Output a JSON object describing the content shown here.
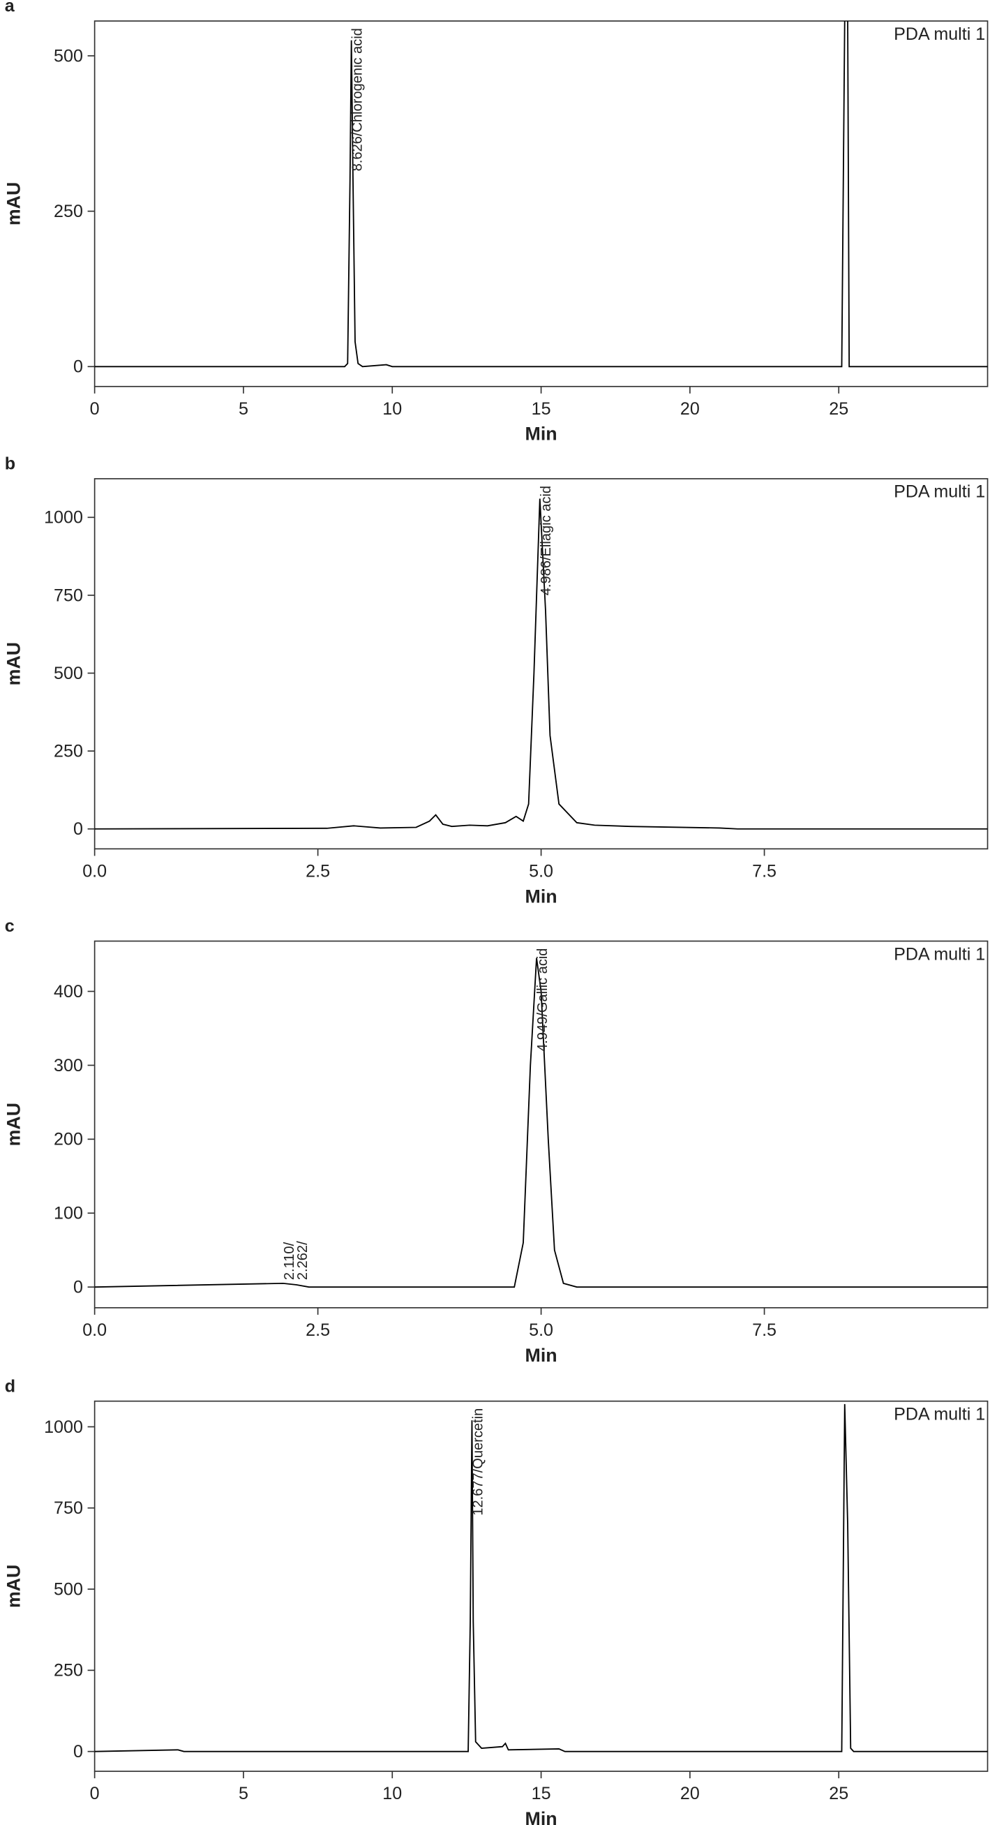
{
  "chart_data": [
    {
      "type": "line",
      "panel": "a",
      "xlabel": "Min",
      "ylabel": "mAU",
      "xlim": [
        0,
        30
      ],
      "ylim": [
        -32,
        556
      ],
      "xticks": [
        0,
        5,
        10,
        15,
        20,
        25
      ],
      "yticks": [
        0,
        250,
        500
      ],
      "x": [
        0,
        2,
        8.4,
        8.5,
        8.58,
        8.626,
        8.68,
        8.75,
        8.85,
        9,
        9.8,
        10,
        25.1,
        25.2,
        25.3,
        25.35,
        30
      ],
      "series": [
        {
          "name": "PDA multi 1",
          "color": "#000000",
          "values": [
            0,
            0,
            0,
            5,
            300,
            525,
            300,
            40,
            5,
            0,
            3,
            0,
            0,
            560,
            560,
            0,
            0
          ]
        }
      ],
      "annotations": [
        {
          "x": 8.626,
          "text": "8.626/Chlorogenic acid"
        }
      ]
    },
    {
      "type": "line",
      "panel": "b",
      "xlabel": "Min",
      "ylabel": "mAU",
      "xlim": [
        0,
        10
      ],
      "ylim": [
        -64,
        1124
      ],
      "xticks": [
        {
          "value": 0,
          "label": "0.0"
        },
        2.5,
        {
          "value": 5,
          "label": "5.0"
        },
        7.5
      ],
      "yticks": [
        0,
        250,
        500,
        750,
        1000
      ],
      "x": [
        0,
        2.6,
        2.9,
        3.2,
        3.6,
        3.75,
        3.82,
        3.9,
        4.0,
        4.2,
        4.4,
        4.6,
        4.72,
        4.8,
        4.86,
        4.92,
        4.986,
        5.05,
        5.1,
        5.2,
        5.4,
        5.6,
        6,
        7,
        7.2,
        10
      ],
      "series": [
        {
          "name": "PDA multi 1",
          "color": "#000000",
          "values": [
            0,
            2,
            10,
            3,
            5,
            25,
            45,
            15,
            8,
            12,
            10,
            20,
            40,
            25,
            80,
            500,
            1060,
            700,
            300,
            80,
            20,
            12,
            8,
            3,
            0,
            0
          ]
        }
      ],
      "annotations": [
        {
          "x": 4.986,
          "text": "4.986/Ellagic acid"
        }
      ]
    },
    {
      "type": "line",
      "panel": "c",
      "xlabel": "Min",
      "ylabel": "mAU",
      "xlim": [
        0,
        10
      ],
      "ylim": [
        -28,
        468
      ],
      "xticks": [
        {
          "value": 0,
          "label": "0.0"
        },
        2.5,
        {
          "value": 5,
          "label": "5.0"
        },
        7.5
      ],
      "yticks": [
        0,
        100,
        200,
        300,
        400
      ],
      "x": [
        0,
        2.11,
        2.262,
        2.4,
        4.7,
        4.8,
        4.88,
        4.949,
        5.0,
        5.08,
        5.15,
        5.25,
        5.4,
        10
      ],
      "series": [
        {
          "name": "PDA multi 1",
          "color": "#000000",
          "values": [
            0,
            5,
            3,
            0,
            0,
            60,
            300,
            445,
            400,
            200,
            50,
            5,
            0,
            0
          ]
        }
      ],
      "annotations": [
        {
          "x": 2.11,
          "text": "2.110/"
        },
        {
          "x": 2.262,
          "text": "2.262/"
        },
        {
          "x": 4.949,
          "text": "4.949/Gallic acid"
        }
      ]
    },
    {
      "type": "line",
      "panel": "d",
      "xlabel": "Min",
      "ylabel": "mAU",
      "xlim": [
        0,
        30
      ],
      "ylim": [
        -61,
        1079
      ],
      "xticks": [
        0,
        5,
        10,
        15,
        20,
        25
      ],
      "yticks": [
        0,
        250,
        500,
        750,
        1000
      ],
      "x": [
        0,
        2.8,
        3,
        12.55,
        12.62,
        12.677,
        12.72,
        12.8,
        13,
        13.7,
        13.8,
        13.9,
        15.6,
        15.8,
        25.1,
        25.2,
        25.3,
        25.4,
        25.5,
        30
      ],
      "series": [
        {
          "name": "PDA multi 1",
          "color": "#000000",
          "values": [
            0,
            5,
            0,
            0,
            400,
            1020,
            400,
            30,
            10,
            15,
            25,
            5,
            8,
            0,
            0,
            1070,
            700,
            10,
            0,
            0
          ]
        }
      ],
      "annotations": [
        {
          "x": 12.677,
          "text": "12.677/Quercetin"
        }
      ]
    }
  ]
}
